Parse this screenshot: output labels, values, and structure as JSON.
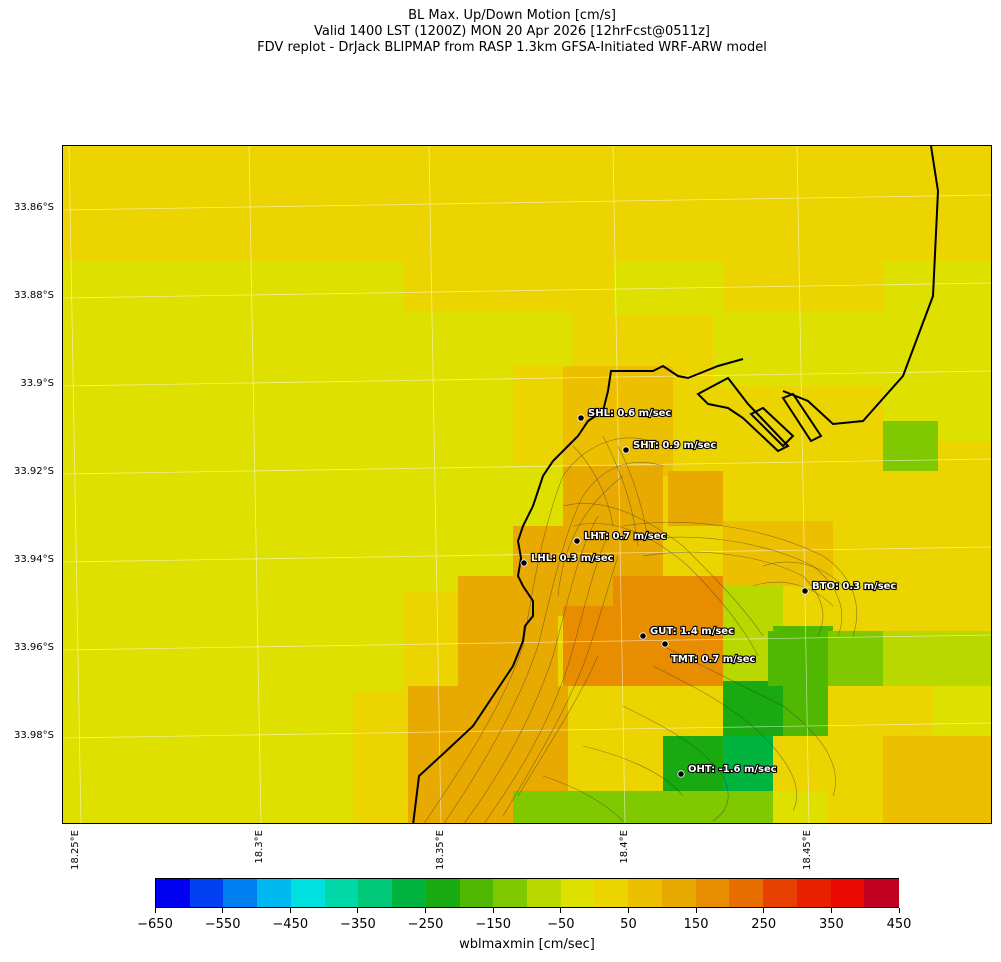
{
  "title": {
    "line1": "BL Max. Up/Down Motion [cm/s]",
    "line2": "Valid 1400 LST (1200Z) MON 20 Apr 2026 [12hrFcst@0511z]",
    "line3": "FDV replot - DrJack BLIPMAP from RASP 1.3km GFSA-Initiated WRF-ARW model"
  },
  "lat_labels": [
    "33.86°S",
    "33.88°S",
    "33.9°S",
    "33.92°S",
    "33.94°S",
    "33.96°S",
    "33.98°S"
  ],
  "lon_labels": [
    "18.25°E",
    "18.3°E",
    "18.35°E",
    "18.4°E",
    "18.45°E"
  ],
  "stations": [
    {
      "code": "SHL",
      "label": "SHL: 0.6 m/sec"
    },
    {
      "code": "SHT",
      "label": "SHT: 0.9 m/sec"
    },
    {
      "code": "LHT",
      "label": "LHT: 0.7 m/sec"
    },
    {
      "code": "LHL",
      "label": "LHL: 0.3 m/sec"
    },
    {
      "code": "BTO",
      "label": "BTO: 0.3 m/sec"
    },
    {
      "code": "GUT",
      "label": "GUT: 1.4 m/sec"
    },
    {
      "code": "TMT",
      "label": "TMT: 0.7 m/sec"
    },
    {
      "code": "OHT",
      "label": "OHT: -1.6 m/sec"
    }
  ],
  "colorbar": {
    "label": "wblmaxmin [cm/sec]",
    "min": -650,
    "max": 450,
    "tick_labels": [
      "−650",
      "−550",
      "−450",
      "−350",
      "−250",
      "−150",
      "−50",
      "50",
      "150",
      "250",
      "350",
      "450"
    ],
    "colors": [
      "#0000f0",
      "#0040f0",
      "#0080f0",
      "#00b8f0",
      "#00e0e0",
      "#00d8a8",
      "#00c878",
      "#00b440",
      "#18aa10",
      "#50b800",
      "#80c800",
      "#b8d800",
      "#dee000",
      "#ecd400",
      "#ecc000",
      "#e8aa00",
      "#e88c00",
      "#e86e00",
      "#e84000",
      "#e82000",
      "#e80a00",
      "#c00020"
    ]
  }
}
